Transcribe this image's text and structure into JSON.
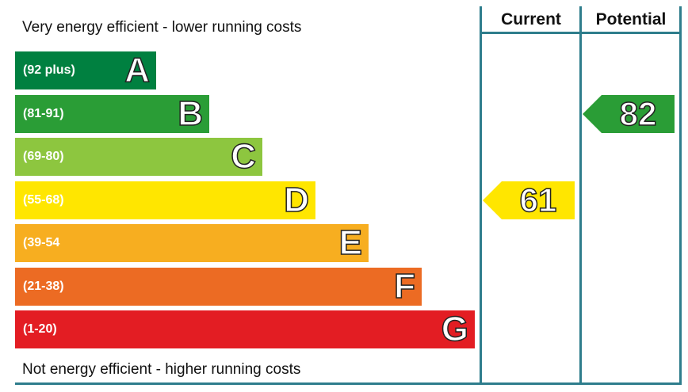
{
  "chart_data": {
    "type": "bar",
    "header": {
      "top_caption": "Very energy efficient - lower running costs",
      "bottom_caption": "Not energy efficient - higher running costs"
    },
    "columns": [
      "Current",
      "Potential"
    ],
    "bands": [
      {
        "letter": "A",
        "range": "(92 plus)",
        "color": "#008040"
      },
      {
        "letter": "B",
        "range": "(81-91)",
        "color": "#2a9d36"
      },
      {
        "letter": "C",
        "range": "(69-80)",
        "color": "#8dc63f"
      },
      {
        "letter": "D",
        "range": "(55-68)",
        "color": "#ffe600"
      },
      {
        "letter": "E",
        "range": "(39-54",
        "color": "#f7ae20"
      },
      {
        "letter": "F",
        "range": "(21-38)",
        "color": "#ec6b23"
      },
      {
        "letter": "G",
        "range": "(1-20)",
        "color": "#e31d23"
      }
    ],
    "ratings": [
      {
        "column": "Current",
        "value": "61",
        "band": "D",
        "color": "#ffe600"
      },
      {
        "column": "Potential",
        "value": "82",
        "band": "B",
        "color": "#2a9d36"
      }
    ]
  }
}
